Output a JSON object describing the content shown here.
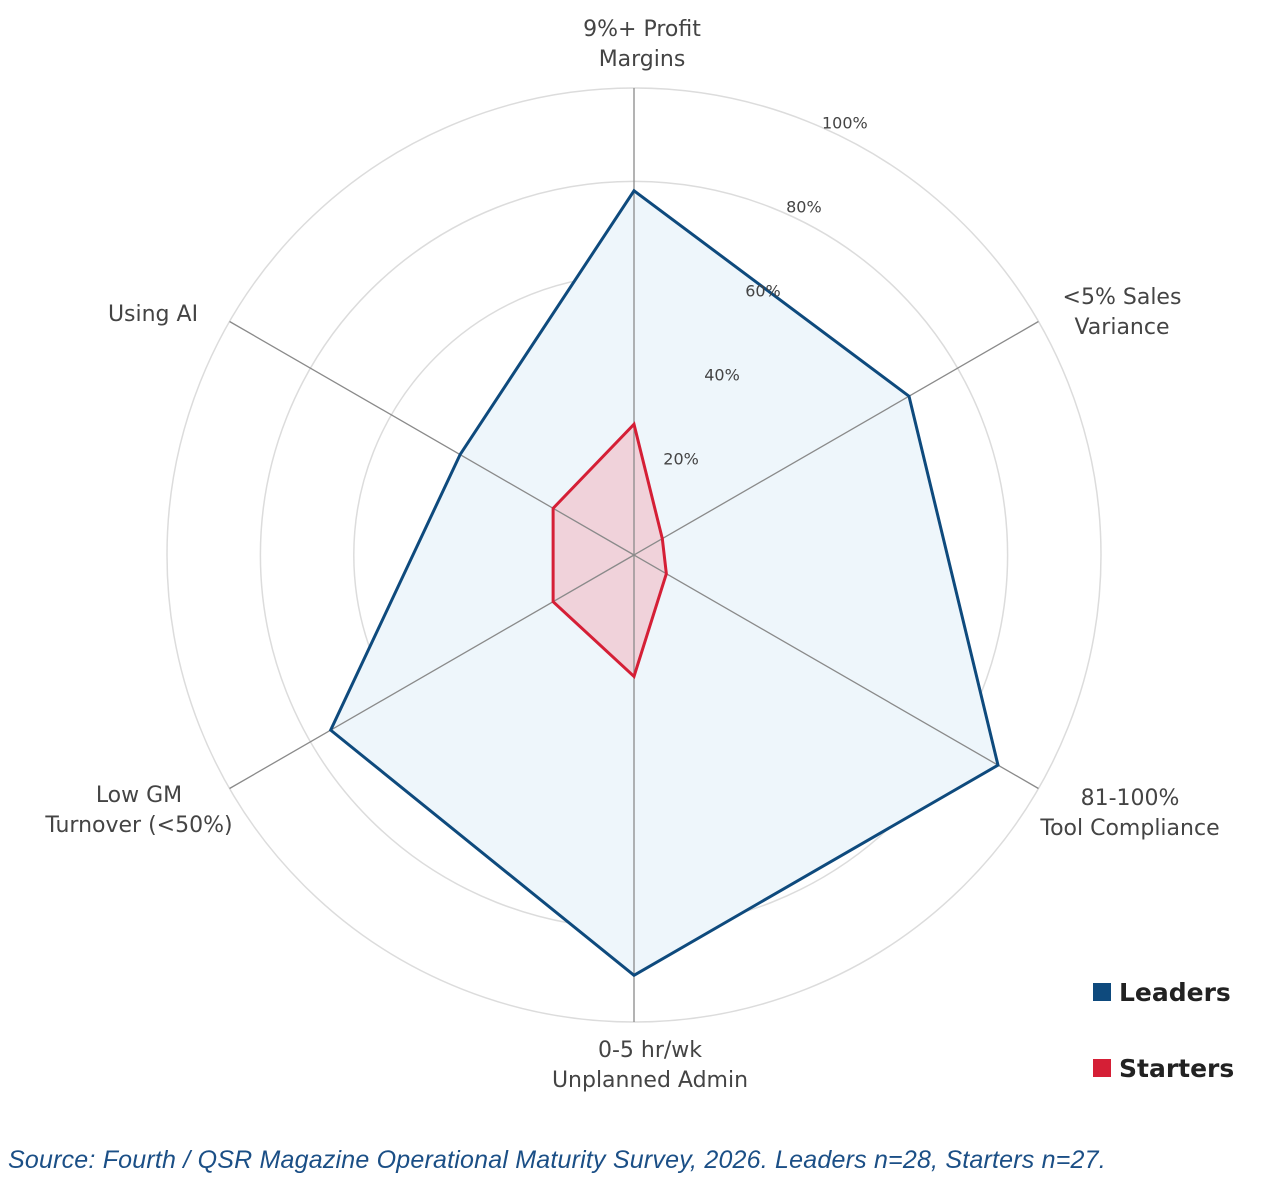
{
  "chart_data": {
    "type": "radar",
    "axes": [
      [
        "9%+ Profit",
        "Margins"
      ],
      [
        "<5% Sales",
        "Variance"
      ],
      [
        "81-100%",
        "Tool Compliance"
      ],
      [
        "0-5 hr/wk",
        "Unplanned Admin"
      ],
      [
        "Low GM",
        "Turnover (<50%)"
      ],
      [
        "Using AI"
      ]
    ],
    "range": [
      0,
      100
    ],
    "ticks": [
      "20%",
      "40%",
      "60%",
      "80%",
      "100%"
    ],
    "tick_values": [
      20,
      40,
      60,
      80,
      100
    ],
    "grid": true,
    "legend_position": "bottom-right",
    "series": [
      {
        "name": "Leaders",
        "color": "#0e4a7d",
        "fill": "#eef6fb",
        "values": [
          78,
          68,
          90,
          90,
          75,
          43
        ]
      },
      {
        "name": "Starters",
        "color": "#d51f36",
        "fill": "#f0d2da",
        "values": [
          28,
          7,
          8,
          26,
          20,
          20
        ]
      }
    ]
  },
  "source": "Source: Fourth / QSR Magazine Operational Maturity Survey, 2026. Leaders n=28, Starters n=27."
}
